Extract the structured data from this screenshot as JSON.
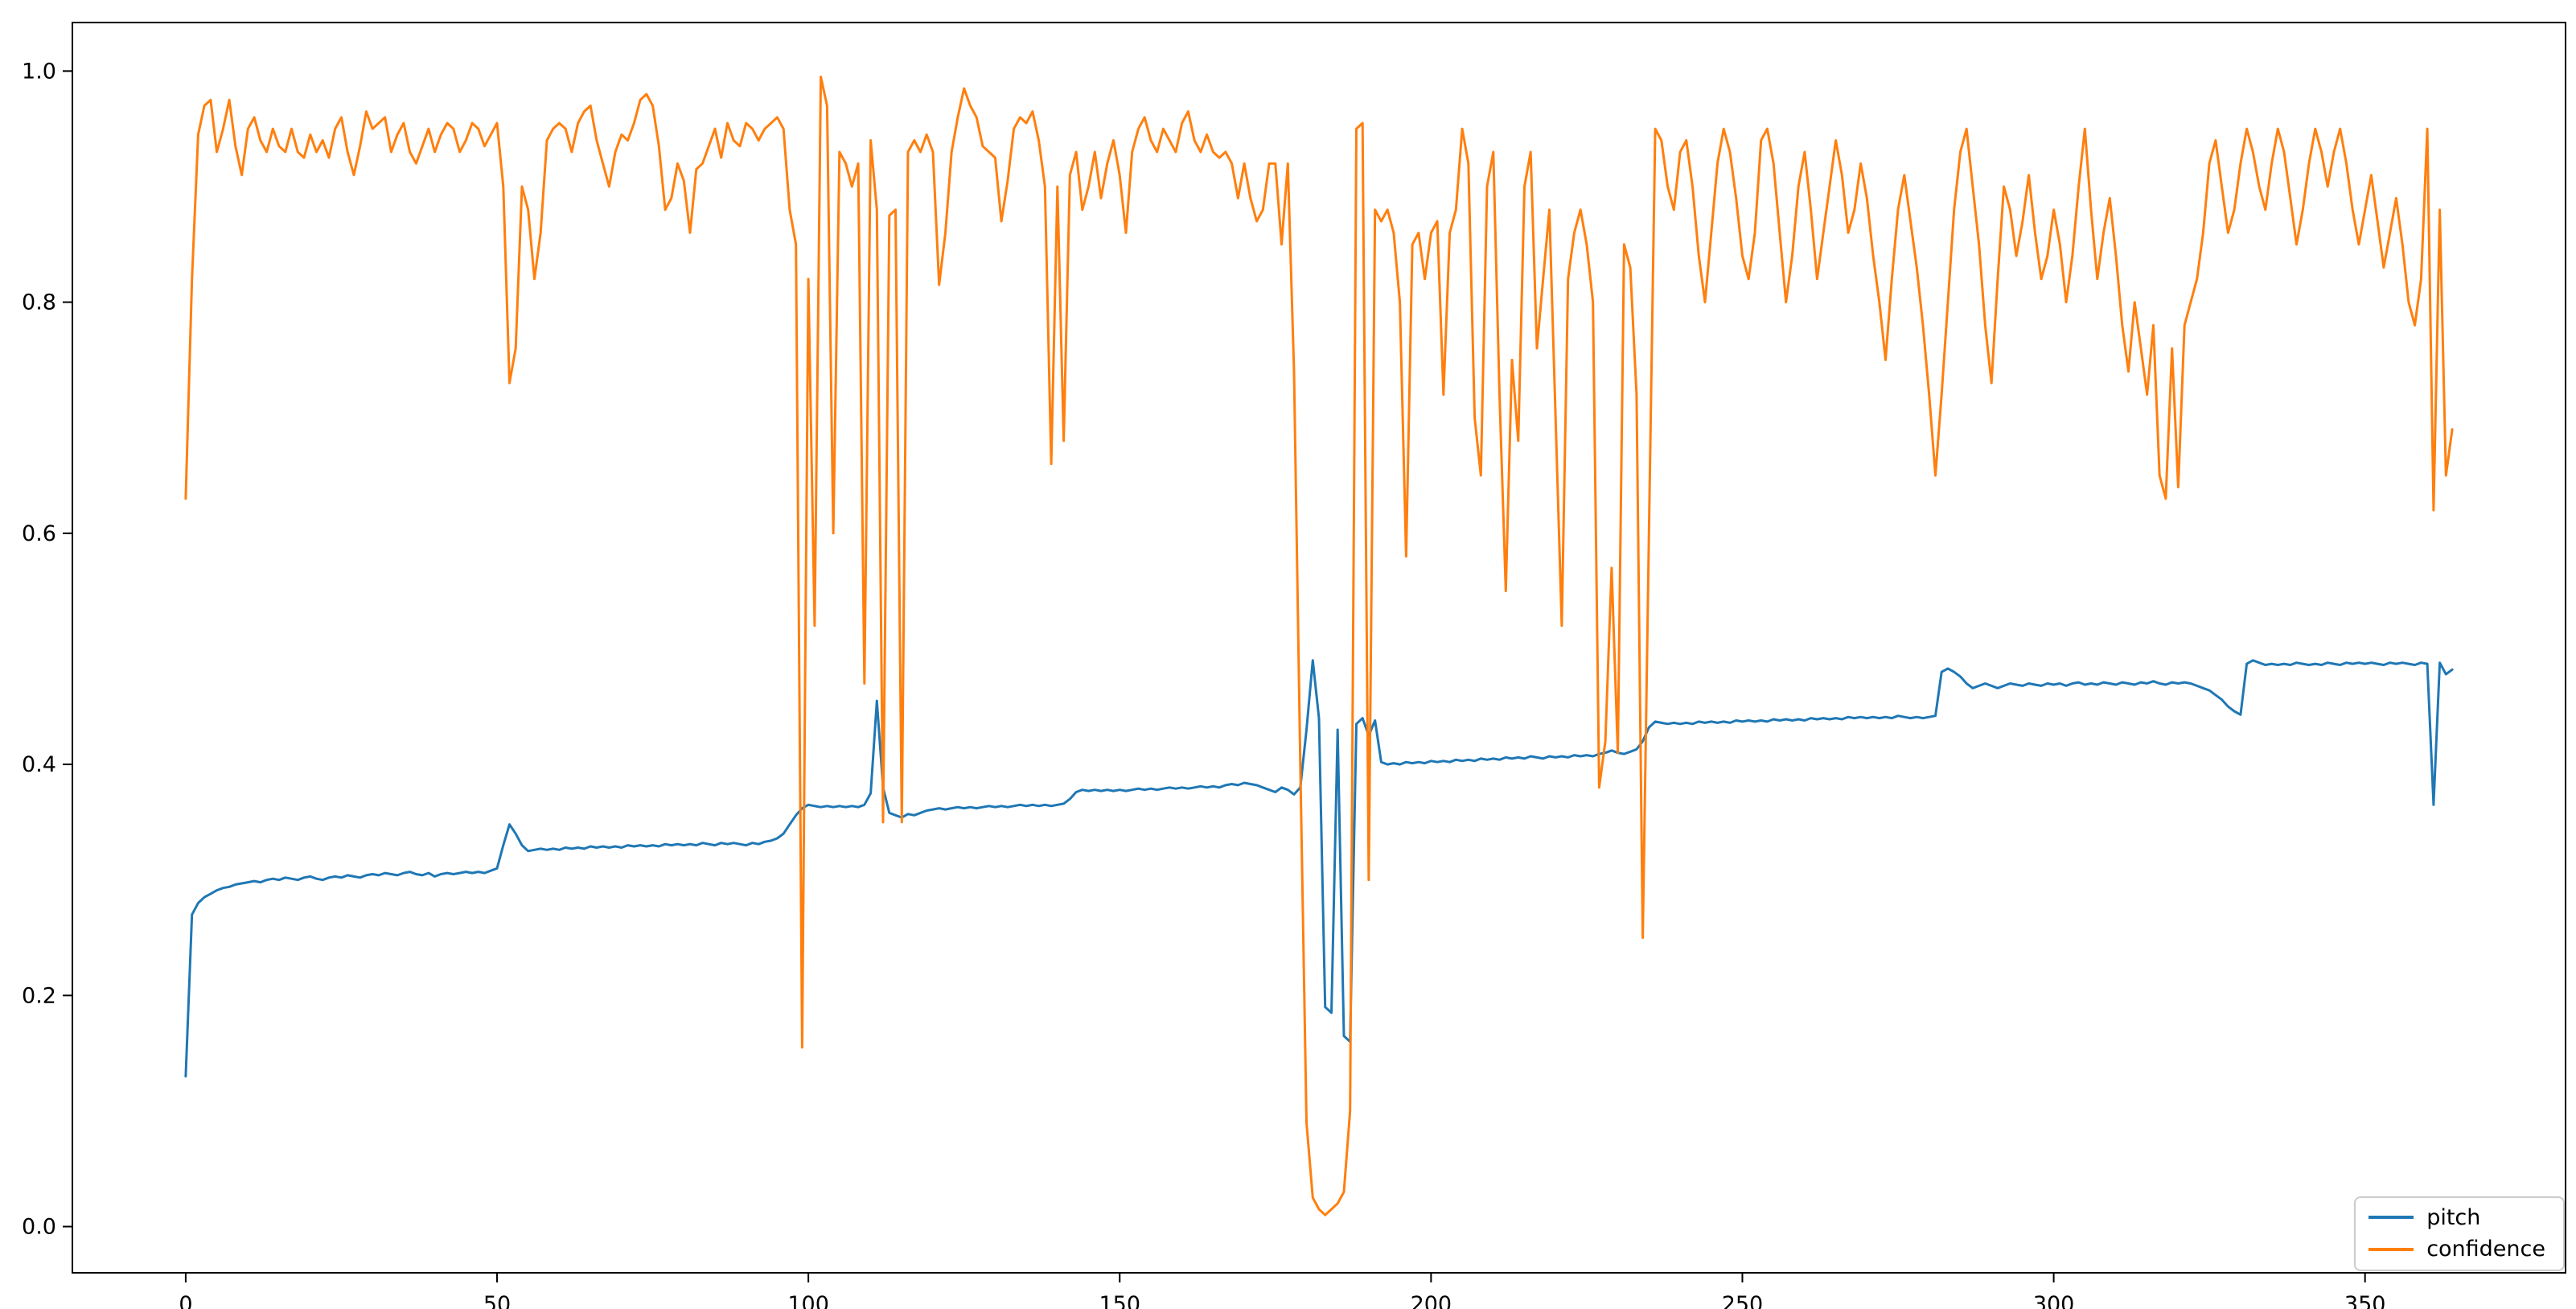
{
  "figure": {
    "background_color": "#ffffff",
    "frame_color": "#000000"
  },
  "chart_data": {
    "type": "line",
    "title": "",
    "xlabel": "",
    "ylabel": "",
    "grid": false,
    "legend_position": "lower right",
    "x_start": 0,
    "x_step": 1,
    "xlim": [
      -18.2,
      382.2
    ],
    "ylim": [
      -0.04,
      1.042
    ],
    "xticks": [
      0,
      50,
      100,
      150,
      200,
      250,
      300,
      350
    ],
    "xtick_labels": [
      "0",
      "50",
      "100",
      "150",
      "200",
      "250",
      "300",
      "350"
    ],
    "yticks": [
      0.0,
      0.2,
      0.4,
      0.6,
      0.8,
      1.0
    ],
    "ytick_labels": [
      "0.0",
      "0.2",
      "0.4",
      "0.6",
      "0.8",
      "1.0"
    ],
    "series": [
      {
        "name": "pitch",
        "color": "#1f77b4",
        "values": [
          0.13,
          0.27,
          0.28,
          0.285,
          0.288,
          0.291,
          0.293,
          0.294,
          0.296,
          0.297,
          0.298,
          0.299,
          0.298,
          0.3,
          0.301,
          0.3,
          0.302,
          0.301,
          0.3,
          0.302,
          0.303,
          0.301,
          0.3,
          0.302,
          0.303,
          0.302,
          0.304,
          0.303,
          0.302,
          0.304,
          0.305,
          0.304,
          0.306,
          0.305,
          0.304,
          0.306,
          0.307,
          0.305,
          0.304,
          0.306,
          0.303,
          0.305,
          0.306,
          0.305,
          0.306,
          0.307,
          0.306,
          0.307,
          0.306,
          0.308,
          0.31,
          0.33,
          0.348,
          0.34,
          0.33,
          0.325,
          0.326,
          0.327,
          0.326,
          0.327,
          0.326,
          0.328,
          0.327,
          0.328,
          0.327,
          0.329,
          0.328,
          0.329,
          0.328,
          0.329,
          0.328,
          0.33,
          0.329,
          0.33,
          0.329,
          0.33,
          0.329,
          0.331,
          0.33,
          0.331,
          0.33,
          0.331,
          0.33,
          0.332,
          0.331,
          0.33,
          0.332,
          0.331,
          0.332,
          0.331,
          0.33,
          0.332,
          0.331,
          0.333,
          0.334,
          0.336,
          0.34,
          0.348,
          0.356,
          0.362,
          0.365,
          0.364,
          0.363,
          0.364,
          0.363,
          0.364,
          0.363,
          0.364,
          0.363,
          0.365,
          0.375,
          0.455,
          0.38,
          0.358,
          0.356,
          0.354,
          0.357,
          0.356,
          0.358,
          0.36,
          0.361,
          0.362,
          0.361,
          0.362,
          0.363,
          0.362,
          0.363,
          0.362,
          0.363,
          0.364,
          0.363,
          0.364,
          0.363,
          0.364,
          0.365,
          0.364,
          0.365,
          0.364,
          0.365,
          0.364,
          0.365,
          0.366,
          0.37,
          0.376,
          0.378,
          0.377,
          0.378,
          0.377,
          0.378,
          0.377,
          0.378,
          0.377,
          0.378,
          0.379,
          0.378,
          0.379,
          0.378,
          0.379,
          0.38,
          0.379,
          0.38,
          0.379,
          0.38,
          0.381,
          0.38,
          0.381,
          0.38,
          0.382,
          0.383,
          0.382,
          0.384,
          0.383,
          0.382,
          0.38,
          0.378,
          0.376,
          0.38,
          0.378,
          0.374,
          0.38,
          0.43,
          0.49,
          0.44,
          0.19,
          0.185,
          0.43,
          0.165,
          0.16,
          0.435,
          0.44,
          0.425,
          0.438,
          0.402,
          0.4,
          0.401,
          0.4,
          0.402,
          0.401,
          0.402,
          0.401,
          0.403,
          0.402,
          0.403,
          0.402,
          0.404,
          0.403,
          0.404,
          0.403,
          0.405,
          0.404,
          0.405,
          0.404,
          0.406,
          0.405,
          0.406,
          0.405,
          0.407,
          0.406,
          0.405,
          0.407,
          0.406,
          0.407,
          0.406,
          0.408,
          0.407,
          0.408,
          0.407,
          0.409,
          0.41,
          0.412,
          0.41,
          0.409,
          0.411,
          0.413,
          0.42,
          0.432,
          0.437,
          0.436,
          0.435,
          0.436,
          0.435,
          0.436,
          0.435,
          0.437,
          0.436,
          0.437,
          0.436,
          0.437,
          0.436,
          0.438,
          0.437,
          0.438,
          0.437,
          0.438,
          0.437,
          0.439,
          0.438,
          0.439,
          0.438,
          0.439,
          0.438,
          0.44,
          0.439,
          0.44,
          0.439,
          0.44,
          0.439,
          0.441,
          0.44,
          0.441,
          0.44,
          0.441,
          0.44,
          0.441,
          0.44,
          0.442,
          0.441,
          0.44,
          0.441,
          0.44,
          0.441,
          0.442,
          0.48,
          0.483,
          0.48,
          0.476,
          0.47,
          0.466,
          0.468,
          0.47,
          0.468,
          0.466,
          0.468,
          0.47,
          0.469,
          0.468,
          0.47,
          0.469,
          0.468,
          0.47,
          0.469,
          0.47,
          0.468,
          0.47,
          0.471,
          0.469,
          0.47,
          0.469,
          0.471,
          0.47,
          0.469,
          0.471,
          0.47,
          0.469,
          0.471,
          0.47,
          0.472,
          0.47,
          0.469,
          0.471,
          0.47,
          0.471,
          0.47,
          0.468,
          0.466,
          0.464,
          0.46,
          0.456,
          0.45,
          0.446,
          0.443,
          0.487,
          0.49,
          0.488,
          0.486,
          0.487,
          0.486,
          0.487,
          0.486,
          0.488,
          0.487,
          0.486,
          0.487,
          0.486,
          0.488,
          0.487,
          0.486,
          0.488,
          0.487,
          0.488,
          0.487,
          0.488,
          0.487,
          0.486,
          0.488,
          0.487,
          0.488,
          0.487,
          0.486,
          0.488,
          0.487,
          0.365,
          0.488,
          0.478,
          0.482
        ]
      },
      {
        "name": "confidence",
        "color": "#ff7f0e",
        "values": [
          0.63,
          0.82,
          0.945,
          0.97,
          0.975,
          0.93,
          0.95,
          0.975,
          0.935,
          0.91,
          0.95,
          0.96,
          0.94,
          0.93,
          0.95,
          0.935,
          0.93,
          0.95,
          0.93,
          0.925,
          0.945,
          0.93,
          0.94,
          0.925,
          0.95,
          0.96,
          0.93,
          0.91,
          0.935,
          0.965,
          0.95,
          0.955,
          0.96,
          0.93,
          0.945,
          0.955,
          0.93,
          0.92,
          0.935,
          0.95,
          0.93,
          0.945,
          0.955,
          0.95,
          0.93,
          0.94,
          0.955,
          0.95,
          0.935,
          0.945,
          0.955,
          0.9,
          0.73,
          0.76,
          0.9,
          0.88,
          0.82,
          0.86,
          0.94,
          0.95,
          0.955,
          0.95,
          0.93,
          0.955,
          0.965,
          0.97,
          0.94,
          0.92,
          0.9,
          0.93,
          0.945,
          0.94,
          0.955,
          0.975,
          0.98,
          0.97,
          0.935,
          0.88,
          0.89,
          0.92,
          0.905,
          0.86,
          0.915,
          0.92,
          0.935,
          0.95,
          0.925,
          0.955,
          0.94,
          0.935,
          0.955,
          0.95,
          0.94,
          0.95,
          0.955,
          0.96,
          0.95,
          0.88,
          0.85,
          0.155,
          0.82,
          0.52,
          0.995,
          0.97,
          0.6,
          0.93,
          0.92,
          0.9,
          0.92,
          0.47,
          0.94,
          0.88,
          0.35,
          0.875,
          0.88,
          0.35,
          0.93,
          0.94,
          0.93,
          0.945,
          0.93,
          0.815,
          0.86,
          0.93,
          0.96,
          0.985,
          0.97,
          0.96,
          0.935,
          0.93,
          0.925,
          0.87,
          0.905,
          0.95,
          0.96,
          0.955,
          0.965,
          0.94,
          0.9,
          0.66,
          0.9,
          0.68,
          0.91,
          0.93,
          0.88,
          0.9,
          0.93,
          0.89,
          0.92,
          0.94,
          0.91,
          0.86,
          0.93,
          0.95,
          0.96,
          0.94,
          0.93,
          0.95,
          0.94,
          0.93,
          0.955,
          0.965,
          0.94,
          0.93,
          0.945,
          0.93,
          0.925,
          0.93,
          0.92,
          0.89,
          0.92,
          0.89,
          0.87,
          0.88,
          0.92,
          0.92,
          0.85,
          0.92,
          0.74,
          0.4,
          0.09,
          0.025,
          0.015,
          0.01,
          0.015,
          0.02,
          0.03,
          0.1,
          0.95,
          0.955,
          0.3,
          0.88,
          0.87,
          0.88,
          0.86,
          0.8,
          0.58,
          0.85,
          0.86,
          0.82,
          0.86,
          0.87,
          0.72,
          0.86,
          0.88,
          0.95,
          0.92,
          0.7,
          0.65,
          0.9,
          0.93,
          0.72,
          0.55,
          0.75,
          0.68,
          0.9,
          0.93,
          0.76,
          0.82,
          0.88,
          0.7,
          0.52,
          0.82,
          0.86,
          0.88,
          0.85,
          0.8,
          0.38,
          0.42,
          0.57,
          0.41,
          0.85,
          0.83,
          0.72,
          0.25,
          0.6,
          0.95,
          0.94,
          0.9,
          0.88,
          0.93,
          0.94,
          0.9,
          0.84,
          0.8,
          0.86,
          0.92,
          0.95,
          0.93,
          0.89,
          0.84,
          0.82,
          0.86,
          0.94,
          0.95,
          0.92,
          0.86,
          0.8,
          0.84,
          0.9,
          0.93,
          0.88,
          0.82,
          0.86,
          0.9,
          0.94,
          0.91,
          0.86,
          0.88,
          0.92,
          0.89,
          0.84,
          0.8,
          0.75,
          0.82,
          0.88,
          0.91,
          0.87,
          0.83,
          0.78,
          0.72,
          0.65,
          0.72,
          0.8,
          0.88,
          0.93,
          0.95,
          0.9,
          0.85,
          0.78,
          0.73,
          0.82,
          0.9,
          0.88,
          0.84,
          0.87,
          0.91,
          0.86,
          0.82,
          0.84,
          0.88,
          0.85,
          0.8,
          0.84,
          0.9,
          0.95,
          0.88,
          0.82,
          0.86,
          0.89,
          0.84,
          0.78,
          0.74,
          0.8,
          0.76,
          0.72,
          0.78,
          0.65,
          0.63,
          0.76,
          0.64,
          0.78,
          0.8,
          0.82,
          0.86,
          0.92,
          0.94,
          0.9,
          0.86,
          0.88,
          0.92,
          0.95,
          0.93,
          0.9,
          0.88,
          0.92,
          0.95,
          0.93,
          0.89,
          0.85,
          0.88,
          0.92,
          0.95,
          0.93,
          0.9,
          0.93,
          0.95,
          0.92,
          0.88,
          0.85,
          0.88,
          0.91,
          0.87,
          0.83,
          0.86,
          0.89,
          0.85,
          0.8,
          0.78,
          0.82,
          0.95,
          0.62,
          0.88,
          0.65,
          0.69
        ]
      }
    ]
  },
  "legend": {
    "entries": [
      "pitch",
      "confidence"
    ]
  }
}
